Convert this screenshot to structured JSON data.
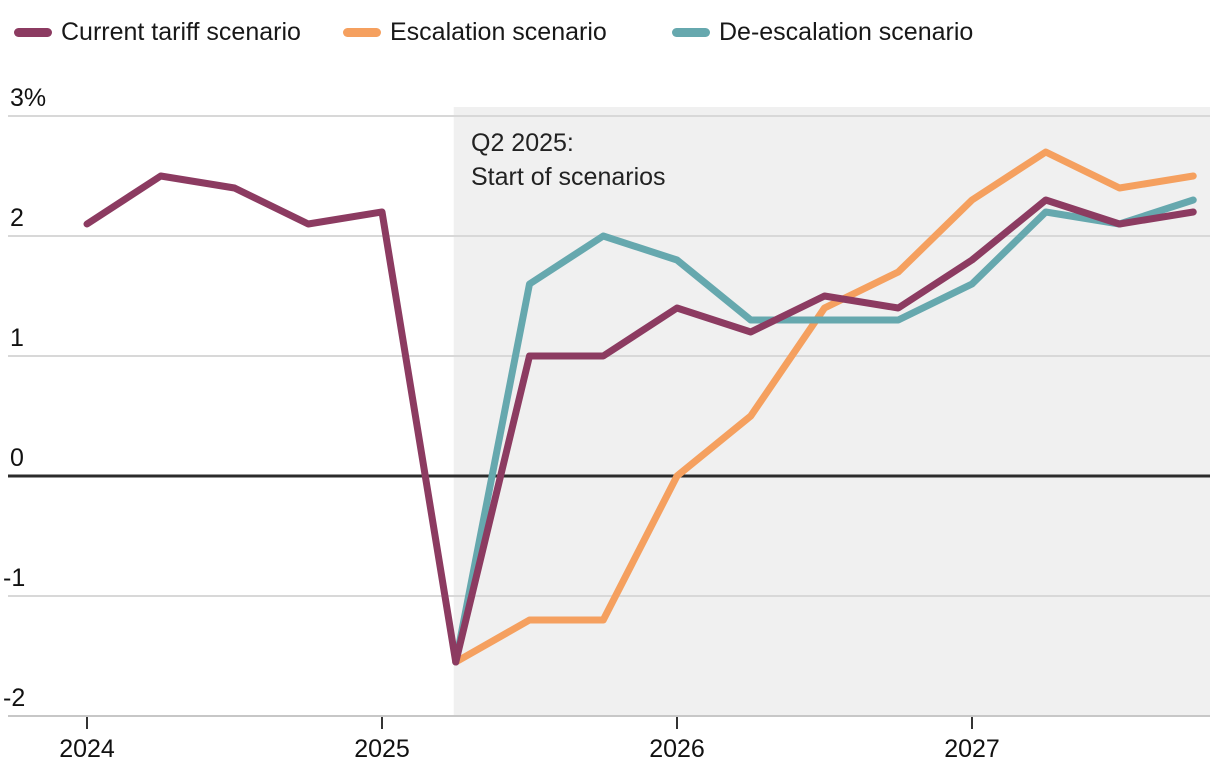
{
  "legend": {
    "items": [
      {
        "label": "Current tariff scenario",
        "color": "#8C3B61"
      },
      {
        "label": "Escalation scenario",
        "color": "#F5A05F"
      },
      {
        "label": "De-escalation scenario",
        "color": "#66A8AE"
      }
    ]
  },
  "annotation": {
    "line1": "Q2 2025:",
    "line2": "Start of scenarios"
  },
  "chart_data": {
    "type": "line",
    "title": "",
    "xlabel": "",
    "ylabel": "%",
    "ylim": [
      -2,
      3
    ],
    "grid": "horizontal",
    "legend_position": "top-left",
    "y_ticks": [
      3,
      2,
      1,
      0,
      -1,
      -2
    ],
    "y_tick_labels": [
      "3%",
      "2",
      "1",
      "0",
      "-1",
      "-2"
    ],
    "x_year_ticks": [
      "2024",
      "2025",
      "2026",
      "2027"
    ],
    "x_unit": "quarters",
    "x_range": [
      "2024Q1",
      "2027Q4"
    ],
    "shaded_region": {
      "start": "2025Q2",
      "end": "2027Q4",
      "note": "Q2 2025: Start of scenarios",
      "color": "#F0F0F0"
    },
    "series": [
      {
        "name": "Current tariff scenario",
        "color": "#8C3B61",
        "start_quarter": "2024Q1",
        "values": [
          2.1,
          2.5,
          2.4,
          2.1,
          2.2,
          -1.55,
          1.0,
          1.0,
          1.4,
          1.2,
          1.5,
          1.4,
          1.8,
          2.3,
          2.1,
          2.2
        ]
      },
      {
        "name": "Escalation scenario",
        "color": "#F5A05F",
        "start_quarter": "2025Q2",
        "values": [
          -1.55,
          -1.2,
          -1.2,
          0.0,
          0.5,
          1.4,
          1.7,
          2.3,
          2.7,
          2.4,
          2.5
        ]
      },
      {
        "name": "De-escalation scenario",
        "color": "#66A8AE",
        "start_quarter": "2025Q2",
        "values": [
          -1.55,
          1.6,
          2.0,
          1.8,
          1.3,
          1.3,
          1.3,
          1.6,
          2.2,
          2.1,
          2.3
        ]
      }
    ]
  },
  "colors": {
    "background": "#FFFFFF",
    "shaded_region": "#F0F0F0",
    "gridline": "#D8D8D8",
    "zero_line": "#2B2B2B",
    "axis_line": "#C7C7C7",
    "tick_mark": "#333333",
    "text": "#111111"
  }
}
